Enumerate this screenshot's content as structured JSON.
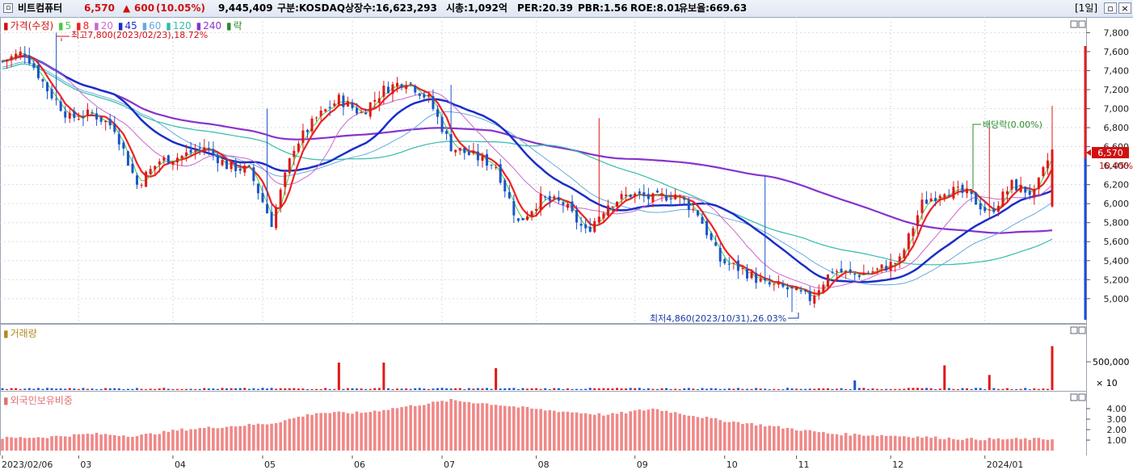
{
  "header": {
    "name": "비트컴퓨터",
    "price": "6,570",
    "change_arrow": "▲",
    "change": "600",
    "change_pct": "(10.05%)",
    "volume": "9,445,409",
    "market": "구분:KOSDAQ",
    "shares": "상장수:16,623,293",
    "mktcap": "시총:1,092억",
    "per": "PER:20.39",
    "pbr": "PBR:1.56",
    "roe": "ROE:8.01",
    "float": "유보율:669.63",
    "period": "[1일]"
  },
  "legend": {
    "price_label": "가격(수정)",
    "ma": [
      "5",
      "8",
      "20",
      "45",
      "60",
      "120",
      "240"
    ],
    "drop_label": "락",
    "colors": {
      "ma5": "#44cc44",
      "ma8": "#ee2222",
      "ma20": "#cc66cc",
      "ma45": "#1a2ec8",
      "ma60": "#66aadd",
      "ma120": "#33bbaa",
      "ma240": "#8833cc"
    }
  },
  "annotations": {
    "high": "최고7,800(2023/02/23),18.72%",
    "low": "최저4,860(2023/10/31),26.03%",
    "dividend": "배당락(0.00%)",
    "price_tag": "6,570",
    "pct_tag": "10.05%"
  },
  "price_axis": [
    "7,800",
    "7,600",
    "7,400",
    "7,200",
    "7,000",
    "6,800",
    "6,600",
    "6,400",
    "6,200",
    "6,000",
    "5,800",
    "5,600",
    "5,400",
    "5,200",
    "5,000"
  ],
  "volume_panel": {
    "title": "거래량",
    "ticks": [
      "500,000",
      "× 10"
    ]
  },
  "foreign_panel": {
    "title": "외국인보유비중",
    "ticks": [
      "4.00",
      "3.00",
      "2.00",
      "1.00"
    ]
  },
  "x_axis": [
    "2023/02/06",
    "03",
    "04",
    "05",
    "06",
    "07",
    "08",
    "09",
    "10",
    "11",
    "12",
    "2024/01"
  ],
  "chart_data": {
    "type": "candlestick",
    "ylim": [
      4820,
      7880
    ],
    "trend_points": [
      [
        0,
        7500
      ],
      [
        5,
        7600
      ],
      [
        10,
        7200
      ],
      [
        15,
        6900
      ],
      [
        20,
        6950
      ],
      [
        25,
        6800
      ],
      [
        30,
        6200
      ],
      [
        35,
        6450
      ],
      [
        40,
        6500
      ],
      [
        45,
        6600
      ],
      [
        50,
        6400
      ],
      [
        55,
        6350
      ],
      [
        60,
        5800
      ],
      [
        65,
        6600
      ],
      [
        70,
        6900
      ],
      [
        75,
        7100
      ],
      [
        80,
        6950
      ],
      [
        85,
        7200
      ],
      [
        90,
        7300
      ],
      [
        95,
        7100
      ],
      [
        100,
        6600
      ],
      [
        105,
        6500
      ],
      [
        110,
        6400
      ],
      [
        115,
        5800
      ],
      [
        120,
        6050
      ],
      [
        125,
        6000
      ],
      [
        130,
        5700
      ],
      [
        135,
        6000
      ],
      [
        140,
        6100
      ],
      [
        145,
        6050
      ],
      [
        150,
        6100
      ],
      [
        155,
        5900
      ],
      [
        160,
        5400
      ],
      [
        165,
        5300
      ],
      [
        170,
        5150
      ],
      [
        175,
        5100
      ],
      [
        180,
        5000
      ],
      [
        185,
        5300
      ],
      [
        190,
        5250
      ],
      [
        195,
        5300
      ],
      [
        200,
        5400
      ],
      [
        205,
        6000
      ],
      [
        210,
        6150
      ],
      [
        215,
        6100
      ],
      [
        220,
        5900
      ],
      [
        225,
        6200
      ],
      [
        230,
        6100
      ],
      [
        234,
        6570
      ]
    ],
    "high_price": 7800,
    "low_price": 4860,
    "volume_spikes": [
      [
        75,
        1.0
      ],
      [
        85,
        1.0
      ],
      [
        110,
        0.8
      ],
      [
        190,
        0.35
      ],
      [
        210,
        0.9
      ],
      [
        220,
        0.55
      ],
      [
        234,
        1.6
      ]
    ],
    "foreign_ratio": [
      [
        0,
        1.2
      ],
      [
        10,
        1.3
      ],
      [
        20,
        1.6
      ],
      [
        30,
        1.4
      ],
      [
        40,
        2.0
      ],
      [
        60,
        2.6
      ],
      [
        70,
        3.6
      ],
      [
        80,
        3.6
      ],
      [
        100,
        4.8
      ],
      [
        110,
        4.4
      ],
      [
        120,
        3.9
      ],
      [
        135,
        3.4
      ],
      [
        145,
        4.0
      ],
      [
        160,
        2.9
      ],
      [
        170,
        2.4
      ],
      [
        185,
        1.6
      ],
      [
        200,
        1.4
      ],
      [
        215,
        1.1
      ],
      [
        234,
        1.1
      ]
    ]
  }
}
